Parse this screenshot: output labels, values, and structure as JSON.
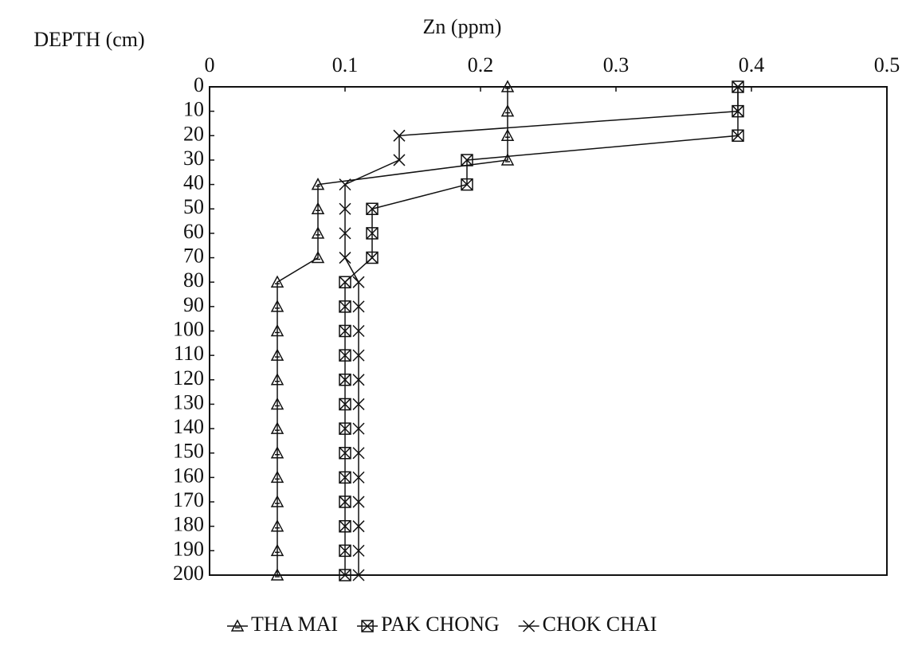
{
  "chart_data": {
    "type": "line",
    "title": "Zn (ppm)",
    "y_label": "DEPTH (cm)",
    "y": [
      0,
      10,
      20,
      30,
      40,
      50,
      60,
      70,
      80,
      90,
      100,
      110,
      120,
      130,
      140,
      150,
      160,
      170,
      180,
      190,
      200
    ],
    "series": [
      {
        "name": "THA MAI",
        "color": "#111111",
        "marker": "triangle",
        "values": [
          0.22,
          0.22,
          0.22,
          0.22,
          0.08,
          0.08,
          0.08,
          0.08,
          0.05,
          0.05,
          0.05,
          0.05,
          0.05,
          0.05,
          0.05,
          0.05,
          0.05,
          0.05,
          0.05,
          0.05,
          0.05
        ]
      },
      {
        "name": "PAK CHONG",
        "color": "#111111",
        "marker": "boxx",
        "values": [
          0.39,
          0.39,
          0.39,
          0.19,
          0.19,
          0.12,
          0.12,
          0.12,
          0.1,
          0.1,
          0.1,
          0.1,
          0.1,
          0.1,
          0.1,
          0.1,
          0.1,
          0.1,
          0.1,
          0.1,
          0.1
        ]
      },
      {
        "name": "CHOK CHAI",
        "color": "#111111",
        "marker": "x",
        "values": [
          0.39,
          0.39,
          0.14,
          0.14,
          0.1,
          0.1,
          0.1,
          0.1,
          0.11,
          0.11,
          0.11,
          0.11,
          0.11,
          0.11,
          0.11,
          0.11,
          0.11,
          0.11,
          0.11,
          0.11,
          0.11
        ]
      }
    ],
    "xlim": [
      0,
      0.5
    ],
    "xticks": [
      0,
      0.1,
      0.2,
      0.3,
      0.4,
      0.5
    ],
    "ylim": [
      0,
      200
    ],
    "yticks": [
      0,
      10,
      20,
      30,
      40,
      50,
      60,
      70,
      80,
      90,
      100,
      110,
      120,
      130,
      140,
      150,
      160,
      170,
      180,
      190,
      200
    ]
  }
}
